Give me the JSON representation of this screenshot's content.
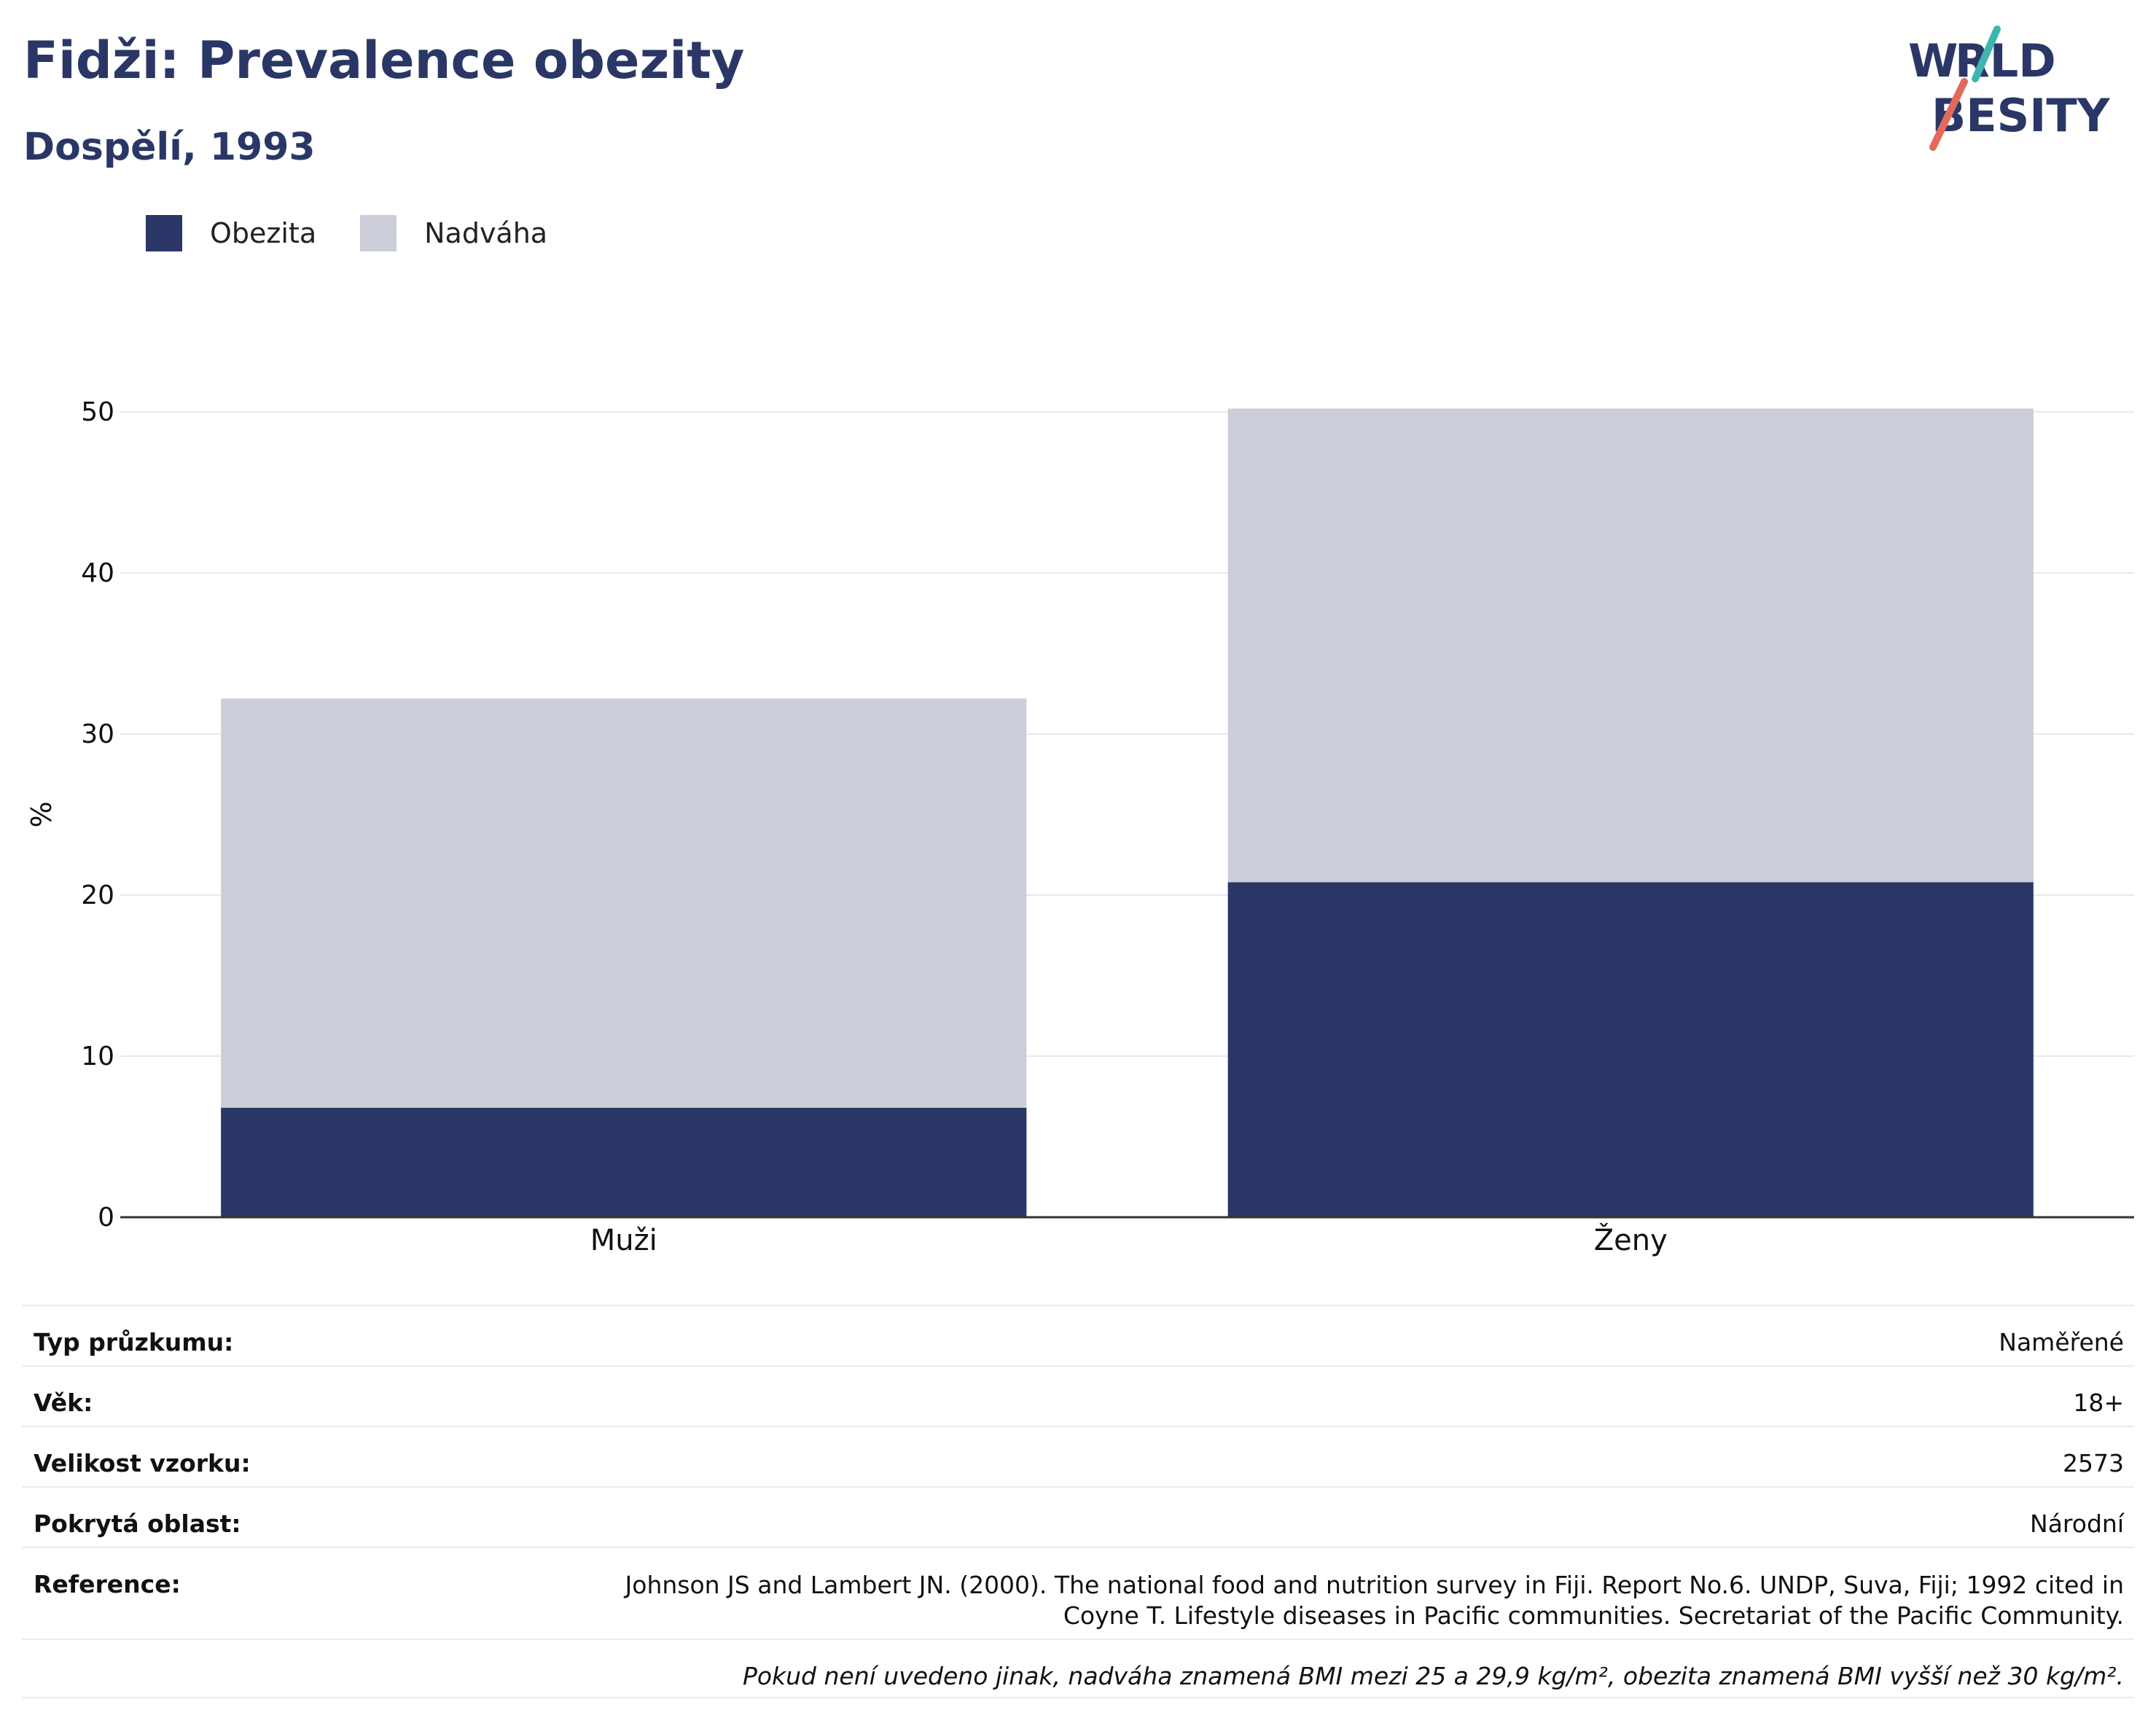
{
  "header": {
    "title": "Fidži: Prevalence obezity",
    "subtitle": "Dospělí, 1993"
  },
  "logo": {
    "line1": "WORLD",
    "line2": "OBESITY"
  },
  "colors": {
    "title": "#2a3766",
    "obesity": "#2a3766",
    "overweight": "#cbcdd8",
    "grid": "#e6e9ee",
    "axis": "#333333",
    "logo_teal": "#3fb5b3",
    "logo_coral": "#e26a5c"
  },
  "legend": [
    {
      "label": "Obezita",
      "color": "#2a3766"
    },
    {
      "label": "Nadváha",
      "color": "#cbcdd8"
    }
  ],
  "chart_data": {
    "type": "bar",
    "stacked": true,
    "categories": [
      "Muži",
      "Ženy"
    ],
    "series": [
      {
        "name": "Obezita",
        "values": [
          6.8,
          20.8
        ]
      },
      {
        "name": "Nadváha",
        "values": [
          25.4,
          29.4
        ]
      }
    ],
    "ylabel": "%",
    "ylim": [
      0,
      50
    ],
    "yticks": [
      0,
      10,
      20,
      30,
      40,
      50
    ],
    "grid": true,
    "legend_position": "top-left"
  },
  "info": {
    "rows": [
      {
        "key": "Typ průzkumu:",
        "value": "Naměřené"
      },
      {
        "key": "Věk:",
        "value": "18+"
      },
      {
        "key": "Velikost vzorku:",
        "value": "2573"
      },
      {
        "key": "Pokrytá oblast:",
        "value": "Národní"
      }
    ],
    "reference_key": "Reference:",
    "reference_value": "Johnson JS and Lambert JN. (2000). The national food and nutrition survey in Fiji. Report No.6. UNDP, Suva, Fiji; 1992 cited in Coyne T. Lifestyle diseases in Pacific communities. Secretariat of the Pacific Community.",
    "note": "Pokud není uvedeno jinak, nadváha znamená BMI mezi 25 a 29,9 kg/m², obezita znamená BMI vyšší než 30 kg/m²."
  }
}
